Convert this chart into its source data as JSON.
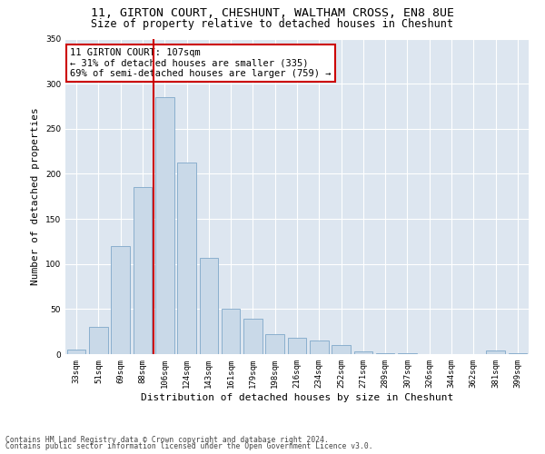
{
  "title": "11, GIRTON COURT, CHESHUNT, WALTHAM CROSS, EN8 8UE",
  "subtitle": "Size of property relative to detached houses in Cheshunt",
  "xlabel": "Distribution of detached houses by size in Cheshunt",
  "ylabel": "Number of detached properties",
  "footnote1": "Contains HM Land Registry data © Crown copyright and database right 2024.",
  "footnote2": "Contains public sector information licensed under the Open Government Licence v3.0.",
  "categories": [
    "33sqm",
    "51sqm",
    "69sqm",
    "88sqm",
    "106sqm",
    "124sqm",
    "143sqm",
    "161sqm",
    "179sqm",
    "198sqm",
    "216sqm",
    "234sqm",
    "252sqm",
    "271sqm",
    "289sqm",
    "307sqm",
    "326sqm",
    "344sqm",
    "362sqm",
    "381sqm",
    "399sqm"
  ],
  "values": [
    5,
    30,
    120,
    185,
    285,
    213,
    107,
    50,
    39,
    22,
    18,
    15,
    10,
    3,
    1,
    1,
    0,
    0,
    0,
    4,
    1
  ],
  "bar_color": "#c9d9e8",
  "bar_edge_color": "#7fa8c9",
  "red_line_x": 3.5,
  "annotation_text": "11 GIRTON COURT: 107sqm\n← 31% of detached houses are smaller (335)\n69% of semi-detached houses are larger (759) →",
  "annotation_box_color": "white",
  "annotation_box_edge_color": "#cc0000",
  "red_line_color": "#cc0000",
  "ylim": [
    0,
    350
  ],
  "yticks": [
    0,
    50,
    100,
    150,
    200,
    250,
    300,
    350
  ],
  "background_color": "#dde6f0",
  "grid_color": "white",
  "title_fontsize": 9.5,
  "subtitle_fontsize": 8.5,
  "tick_fontsize": 6.5,
  "ylabel_fontsize": 8,
  "xlabel_fontsize": 8,
  "footnote_fontsize": 5.8
}
